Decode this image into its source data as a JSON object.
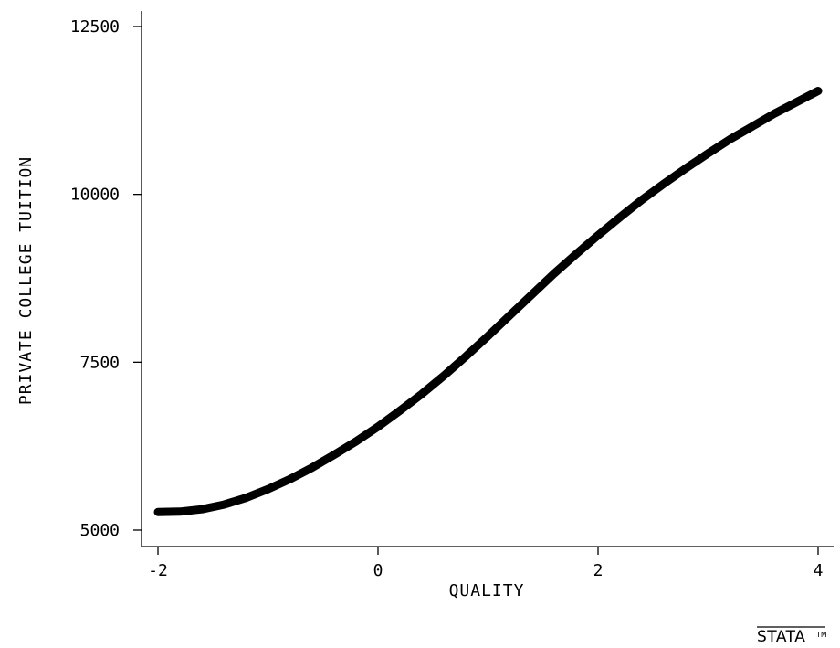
{
  "chart_data": {
    "type": "line",
    "xlabel": "QUALITY",
    "ylabel": "PRIVATE COLLEGE TUITION",
    "xlim": [
      -2,
      4
    ],
    "ylim": [
      5000,
      12500
    ],
    "x_ticks": [
      -2,
      0,
      2,
      4
    ],
    "y_ticks": [
      5000,
      7500,
      10000,
      12500
    ],
    "x_tick_labels": [
      "-2",
      "0",
      "2",
      "4"
    ],
    "y_tick_labels": [
      "5000",
      "7500",
      "10000",
      "12500"
    ],
    "grid": false,
    "series": [
      {
        "x": [
          -2.0,
          -1.8,
          -1.6,
          -1.4,
          -1.2,
          -1.0,
          -0.8,
          -0.6,
          -0.4,
          -0.2,
          0.0,
          0.2,
          0.4,
          0.6,
          0.8,
          1.0,
          1.2,
          1.4,
          1.6,
          1.8,
          2.0,
          2.2,
          2.4,
          2.6,
          2.8,
          3.0,
          3.2,
          3.4,
          3.6,
          3.8,
          4.0
        ],
        "y": [
          5270,
          5275,
          5310,
          5380,
          5480,
          5610,
          5760,
          5930,
          6120,
          6320,
          6540,
          6780,
          7030,
          7300,
          7590,
          7890,
          8200,
          8510,
          8820,
          9110,
          9390,
          9660,
          9920,
          10160,
          10390,
          10610,
          10820,
          11010,
          11200,
          11370,
          11540
        ],
        "color": "#000000"
      }
    ]
  },
  "logo": {
    "text": "STATA",
    "mark": "TM"
  }
}
